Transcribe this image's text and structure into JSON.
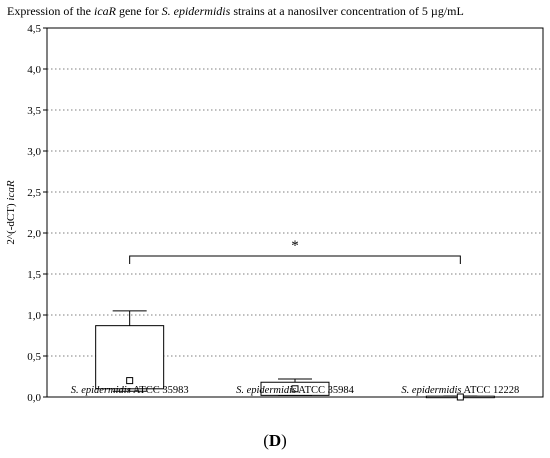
{
  "chart_data": {
    "type": "box",
    "title_parts": [
      {
        "text": "Expression of the ",
        "italic": false
      },
      {
        "text": "icaR",
        "italic": true
      },
      {
        "text": " gene for ",
        "italic": false
      },
      {
        "text": "S. epidermidis",
        "italic": true
      },
      {
        "text": "  strains at a nanosilver concentration of 5 µg/mL",
        "italic": false
      }
    ],
    "ylabel_parts": [
      {
        "text": "2^(-dCT) ",
        "italic": false
      },
      {
        "text": "icaR",
        "italic": true
      }
    ],
    "xlabel": "",
    "ylim": [
      0,
      4.5
    ],
    "yticks": [
      0,
      0.5,
      1.0,
      1.5,
      2.0,
      2.5,
      3.0,
      3.5,
      4.0,
      4.5
    ],
    "ytick_labels": [
      "0,0",
      "0,5",
      "1,0",
      "1,5",
      "2,0",
      "2,5",
      "3,0",
      "3,5",
      "4,0",
      "4,5"
    ],
    "grid": "horizontal-dotted",
    "categories": [
      {
        "species": "S. epidermidis",
        "strain": " ATCC 35983"
      },
      {
        "species": "S. epidermidis",
        "strain": " ATCC 35984"
      },
      {
        "species": "S. epidermidis",
        "strain": " ATCC 12228"
      }
    ],
    "boxes": [
      {
        "median": 0.2,
        "q1": 0.1,
        "q3": 0.87,
        "whisker_low": 0.07,
        "whisker_high": 1.05
      },
      {
        "median": 0.1,
        "q1": 0.02,
        "q3": 0.18,
        "whisker_low": 0.02,
        "whisker_high": 0.22
      },
      {
        "median": 0.0,
        "q1": 0.0,
        "q3": 0.01,
        "whisker_low": 0.0,
        "whisker_high": 0.01
      }
    ],
    "significance": {
      "from": 0,
      "to": 2,
      "y": 1.72,
      "symbol": "*"
    }
  },
  "panel_label": "(D)"
}
